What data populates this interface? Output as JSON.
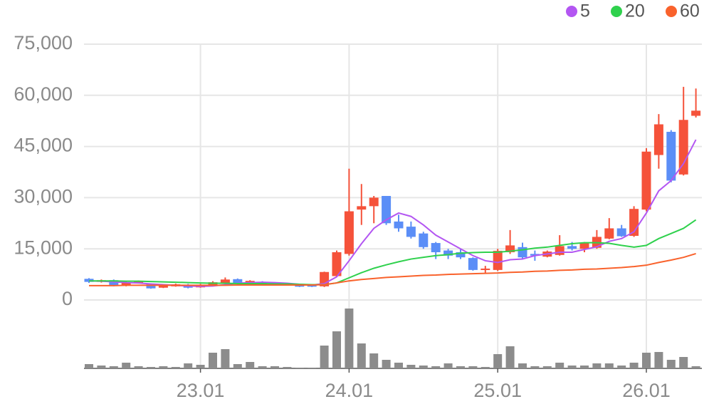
{
  "chart_data": {
    "type": "candlestick",
    "categories": [
      null,
      null,
      null,
      null,
      null,
      null,
      null,
      null,
      null,
      "23.01",
      null,
      null,
      null,
      null,
      null,
      null,
      null,
      null,
      null,
      null,
      null,
      "24.01",
      null,
      null,
      null,
      null,
      null,
      null,
      null,
      null,
      null,
      null,
      null,
      "25.01",
      null,
      null,
      null,
      null,
      null,
      null,
      null,
      null,
      null,
      null,
      null,
      "26.01",
      null,
      null,
      null,
      null
    ],
    "open": [
      6200,
      5300,
      5800,
      4200,
      5000,
      4800,
      3600,
      4000,
      4500,
      3700,
      4300,
      4800,
      6100,
      4700,
      5300,
      5000,
      4700,
      4600,
      4500,
      4000,
      7000,
      13500,
      26500,
      27500,
      30500,
      23000,
      21500,
      19500,
      16700,
      14500,
      14000,
      12300,
      8800,
      8800,
      14000,
      15500,
      13500,
      12700,
      13200,
      15800,
      15000,
      15300,
      18000,
      21000,
      18800,
      26500,
      42500,
      49300,
      36800,
      54000
    ],
    "high": [
      6400,
      6000,
      6000,
      5400,
      5700,
      4900,
      4300,
      4800,
      4700,
      4700,
      5500,
      6600,
      6300,
      5800,
      5500,
      5200,
      4900,
      4800,
      4600,
      8300,
      14500,
      38500,
      34000,
      30500,
      30500,
      25000,
      23000,
      20000,
      17000,
      15000,
      15000,
      12500,
      10000,
      15000,
      20500,
      16800,
      14500,
      14500,
      19000,
      17000,
      17000,
      20500,
      24000,
      22000,
      27500,
      44500,
      54500,
      49800,
      62500,
      62000
    ],
    "low": [
      5000,
      5100,
      4000,
      4000,
      4800,
      3300,
      3500,
      3900,
      3400,
      3600,
      4200,
      4700,
      4600,
      4600,
      4500,
      4200,
      4200,
      3800,
      3800,
      3800,
      6700,
      13000,
      22000,
      22500,
      22000,
      20000,
      18000,
      15000,
      12000,
      12000,
      12000,
      8600,
      7800,
      8500,
      13500,
      12000,
      11500,
      12500,
      13000,
      14500,
      14000,
      15000,
      17800,
      18500,
      18500,
      26000,
      38500,
      34500,
      36500,
      53500
    ],
    "close": [
      5300,
      5800,
      4200,
      5200,
      5500,
      3400,
      4200,
      4600,
      3600,
      4500,
      5200,
      6000,
      4700,
      5600,
      4600,
      4300,
      4300,
      3900,
      3900,
      8200,
      14000,
      26000,
      27500,
      30000,
      22500,
      21000,
      18500,
      15500,
      14000,
      13000,
      12500,
      8800,
      9200,
      14400,
      16000,
      12500,
      13000,
      14200,
      15800,
      15000,
      16700,
      18500,
      21000,
      18700,
      26700,
      43500,
      51500,
      35000,
      52800,
      55500
    ],
    "volume": [
      6,
      4,
      3,
      8,
      3,
      2,
      3,
      2,
      7,
      5,
      22,
      27,
      6,
      9,
      3,
      3,
      2,
      1,
      1,
      32,
      52,
      84,
      35,
      21,
      12,
      8,
      5,
      4,
      3,
      7,
      3,
      3,
      2,
      20,
      31,
      7,
      3,
      3,
      8,
      4,
      4,
      7,
      7,
      4,
      8,
      22,
      23,
      12,
      16,
      3
    ],
    "up_color": "#f5523a",
    "down_color": "#5b8ef7",
    "volume_color": "#8c8c8c",
    "series": [
      {
        "name": "5",
        "color": "#b356f2",
        "values": [
          5600,
          5500,
          5300,
          5100,
          5000,
          4700,
          4500,
          4300,
          4100,
          4000,
          4100,
          4500,
          4900,
          5100,
          5200,
          5100,
          4900,
          4600,
          4400,
          4800,
          6800,
          11500,
          16500,
          21000,
          23500,
          25500,
          24500,
          22000,
          19000,
          17000,
          15000,
          13000,
          11500,
          11000,
          11800,
          12000,
          13000,
          13500,
          14000,
          14000,
          14800,
          15600,
          17200,
          18000,
          20000,
          25500,
          32000,
          35000,
          40000,
          47000
        ]
      },
      {
        "name": "20",
        "color": "#2fd14d",
        "values": [
          5600,
          5600,
          5600,
          5500,
          5500,
          5400,
          5300,
          5200,
          5100,
          5000,
          4900,
          4900,
          4800,
          4800,
          4800,
          4700,
          4700,
          4600,
          4500,
          4500,
          5000,
          6500,
          8000,
          9300,
          10300,
          11200,
          12000,
          12500,
          13000,
          13300,
          13700,
          13900,
          14000,
          14000,
          14300,
          14700,
          15200,
          15500,
          16000,
          16500,
          16800,
          16800,
          16600,
          16000,
          15500,
          16000,
          18000,
          19500,
          21000,
          23500
        ]
      },
      {
        "name": "60",
        "color": "#f9622c",
        "values": [
          4200,
          4200,
          4200,
          4300,
          4300,
          4300,
          4300,
          4300,
          4300,
          4300,
          4300,
          4300,
          4400,
          4400,
          4400,
          4400,
          4400,
          4400,
          4400,
          4500,
          5000,
          5600,
          6000,
          6300,
          6600,
          6800,
          7000,
          7200,
          7300,
          7500,
          7600,
          7700,
          7800,
          7900,
          8100,
          8200,
          8400,
          8500,
          8700,
          8800,
          9000,
          9100,
          9300,
          9500,
          9800,
          10200,
          11000,
          11700,
          12500,
          13600
        ]
      }
    ],
    "ylim": [
      0,
      75000
    ],
    "yticks": [
      0,
      {
        "value": 15000,
        "label": "15,000"
      },
      {
        "value": 30000,
        "label": "30,000"
      },
      {
        "value": 45000,
        "label": "45,000"
      },
      {
        "value": 60000,
        "label": "60,000"
      },
      {
        "value": 75000,
        "label": "75,000"
      }
    ],
    "grid": true
  }
}
